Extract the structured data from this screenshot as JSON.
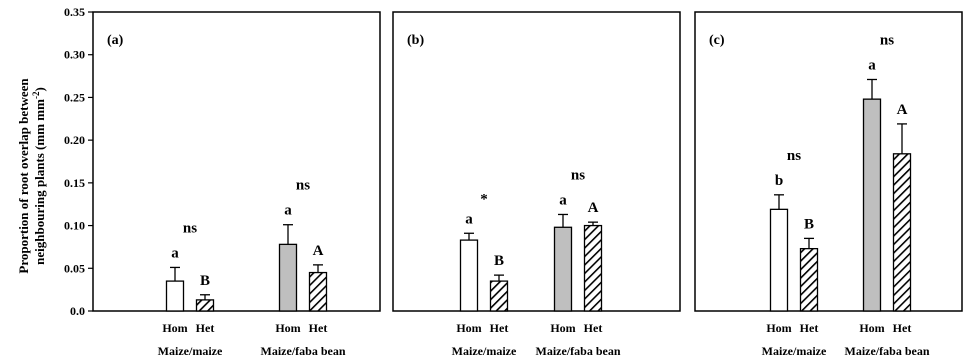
{
  "y_axis": {
    "title_line1": "Proportion of  root overlap between",
    "title_line2": "neighbouring plants  (mm mm",
    "title_sup": "-2",
    "title_close": ")"
  },
  "group_labels": [
    "Maize/maize",
    "Maize/faba bean"
  ],
  "bar_labels": [
    "Hom",
    "Het"
  ],
  "colors": {
    "maize_maize": "#ffffff",
    "maize_faba": "#bfbfbf",
    "edge": "#000000",
    "het_hatch": "diagonal"
  },
  "chart_data": [
    {
      "type": "bar",
      "panel": "(a)",
      "ylim": [
        0,
        0.35
      ],
      "yticks": [
        "0.0",
        "0.05",
        "0.10",
        "0.15",
        "0.20",
        "0.25",
        "0.30",
        "0.35"
      ],
      "groups": [
        {
          "name": "Maize/maize",
          "bars": [
            {
              "name": "Hom",
              "value": 0.035,
              "error": 0.016,
              "letter": "a"
            },
            {
              "name": "Het",
              "value": 0.013,
              "error": 0.006,
              "letter": "B"
            }
          ],
          "significance": "ns"
        },
        {
          "name": "Maize/faba bean",
          "bars": [
            {
              "name": "Hom",
              "value": 0.078,
              "error": 0.023,
              "letter": "a"
            },
            {
              "name": "Het",
              "value": 0.045,
              "error": 0.009,
              "letter": "A"
            }
          ],
          "significance": "ns"
        }
      ]
    },
    {
      "type": "bar",
      "panel": "(b)",
      "ylim": [
        0,
        0.35
      ],
      "groups": [
        {
          "name": "Maize/maize",
          "bars": [
            {
              "name": "Hom",
              "value": 0.083,
              "error": 0.008,
              "letter": "a"
            },
            {
              "name": "Het",
              "value": 0.035,
              "error": 0.007,
              "letter": "B"
            }
          ],
          "significance": "*"
        },
        {
          "name": "Maize/faba bean",
          "bars": [
            {
              "name": "Hom",
              "value": 0.098,
              "error": 0.015,
              "letter": "a"
            },
            {
              "name": "Het",
              "value": 0.1,
              "error": 0.004,
              "letter": "A"
            }
          ],
          "significance": "ns"
        }
      ]
    },
    {
      "type": "bar",
      "panel": "(c)",
      "ylim": [
        0,
        0.35
      ],
      "groups": [
        {
          "name": "Maize/maize",
          "bars": [
            {
              "name": "Hom",
              "value": 0.119,
              "error": 0.017,
              "letter": "b"
            },
            {
              "name": "Het",
              "value": 0.073,
              "error": 0.012,
              "letter": "B"
            }
          ],
          "significance": "ns"
        },
        {
          "name": "Maize/faba bean",
          "bars": [
            {
              "name": "Hom",
              "value": 0.248,
              "error": 0.023,
              "letter": "a"
            },
            {
              "name": "Het",
              "value": 0.184,
              "error": 0.035,
              "letter": "A"
            }
          ],
          "significance": "ns"
        }
      ]
    }
  ]
}
